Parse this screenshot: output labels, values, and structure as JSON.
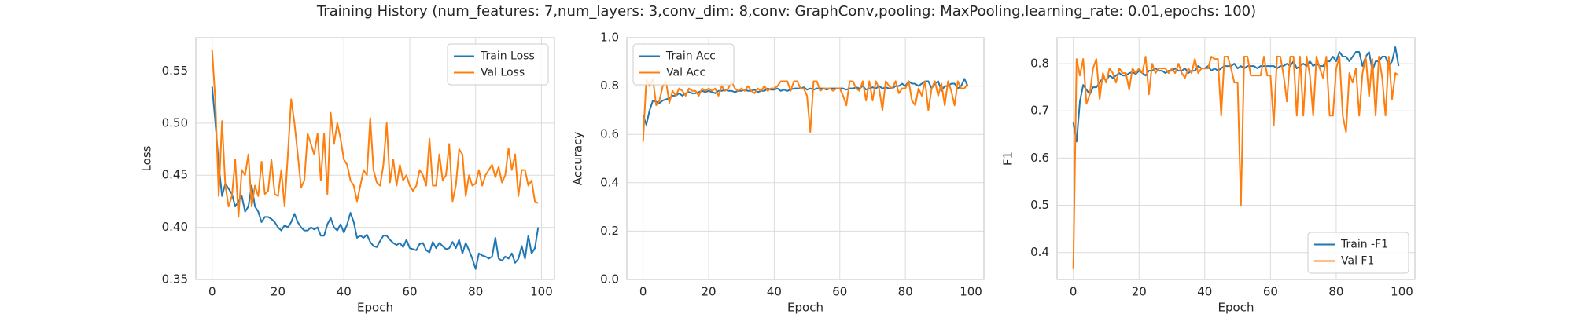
{
  "title": "Training History (num_features: 7,num_layers: 3,conv_dim: 8,conv: GraphConv,pooling: MaxPooling,learning_rate: 0.01,epochs: 100)",
  "chart_data": [
    {
      "type": "line",
      "xlabel": "Epoch",
      "ylabel": "Loss",
      "grid": true,
      "legend": "upper right",
      "x": [
        0,
        1,
        2,
        3,
        4,
        5,
        6,
        7,
        8,
        9,
        10,
        11,
        12,
        13,
        14,
        15,
        16,
        17,
        18,
        19,
        20,
        21,
        22,
        23,
        24,
        25,
        26,
        27,
        28,
        29,
        30,
        31,
        32,
        33,
        34,
        35,
        36,
        37,
        38,
        39,
        40,
        41,
        42,
        43,
        44,
        45,
        46,
        47,
        48,
        49,
        50,
        51,
        52,
        53,
        54,
        55,
        56,
        57,
        58,
        59,
        60,
        61,
        62,
        63,
        64,
        65,
        66,
        67,
        68,
        69,
        70,
        71,
        72,
        73,
        74,
        75,
        76,
        77,
        78,
        79,
        80,
        81,
        82,
        83,
        84,
        85,
        86,
        87,
        88,
        89,
        90,
        91,
        92,
        93,
        94,
        95,
        96,
        97,
        98,
        99
      ],
      "xlim": [
        -4.95,
        103.95
      ],
      "xticks": [
        0,
        20,
        40,
        60,
        80,
        100
      ],
      "ylim": [
        0.35,
        0.582
      ],
      "yticks": [
        0.35,
        {
          "value": 0.4,
          "label": "0.40"
        },
        0.45,
        {
          "value": 0.5,
          "label": "0.50"
        },
        0.55
      ],
      "series": [
        {
          "name": "Train Loss",
          "color": "#1f77b4",
          "values": [
            0.535,
            0.5,
            0.46,
            0.43,
            0.442,
            0.437,
            0.432,
            0.42,
            0.425,
            0.43,
            0.415,
            0.42,
            0.44,
            0.42,
            0.415,
            0.405,
            0.41,
            0.41,
            0.408,
            0.405,
            0.4,
            0.397,
            0.402,
            0.4,
            0.405,
            0.413,
            0.405,
            0.4,
            0.397,
            0.397,
            0.4,
            0.398,
            0.4,
            0.392,
            0.392,
            0.403,
            0.409,
            0.4,
            0.397,
            0.403,
            0.395,
            0.403,
            0.414,
            0.405,
            0.39,
            0.392,
            0.39,
            0.393,
            0.386,
            0.382,
            0.381,
            0.387,
            0.392,
            0.392,
            0.388,
            0.385,
            0.383,
            0.385,
            0.381,
            0.388,
            0.38,
            0.379,
            0.378,
            0.384,
            0.385,
            0.378,
            0.376,
            0.386,
            0.38,
            0.385,
            0.382,
            0.379,
            0.38,
            0.386,
            0.38,
            0.388,
            0.375,
            0.385,
            0.378,
            0.37,
            0.36,
            0.375,
            0.373,
            0.372,
            0.37,
            0.372,
            0.39,
            0.37,
            0.368,
            0.372,
            0.37,
            0.375,
            0.366,
            0.37,
            0.382,
            0.37,
            0.392,
            0.375,
            0.38,
            0.4
          ]
        },
        {
          "name": "Val Loss",
          "color": "#ff7f0e",
          "values": [
            0.57,
            0.52,
            0.43,
            0.502,
            0.44,
            0.42,
            0.43,
            0.465,
            0.41,
            0.455,
            0.45,
            0.47,
            0.42,
            0.44,
            0.43,
            0.463,
            0.432,
            0.435,
            0.465,
            0.432,
            0.43,
            0.455,
            0.42,
            0.47,
            0.523,
            0.5,
            0.47,
            0.438,
            0.445,
            0.49,
            0.48,
            0.47,
            0.49,
            0.445,
            0.49,
            0.432,
            0.51,
            0.48,
            0.5,
            0.485,
            0.465,
            0.46,
            0.445,
            0.44,
            0.425,
            0.44,
            0.455,
            0.45,
            0.505,
            0.455,
            0.443,
            0.44,
            0.46,
            0.5,
            0.443,
            0.465,
            0.44,
            0.46,
            0.445,
            0.45,
            0.44,
            0.435,
            0.44,
            0.455,
            0.45,
            0.44,
            0.485,
            0.44,
            0.44,
            0.47,
            0.445,
            0.45,
            0.48,
            0.425,
            0.44,
            0.475,
            0.47,
            0.43,
            0.45,
            0.44,
            0.442,
            0.455,
            0.44,
            0.45,
            0.455,
            0.46,
            0.448,
            0.458,
            0.443,
            0.45,
            0.476,
            0.455,
            0.47,
            0.43,
            0.455,
            0.455,
            0.44,
            0.445,
            0.425,
            0.423
          ]
        }
      ]
    },
    {
      "type": "line",
      "xlabel": "Epoch",
      "ylabel": "Accuracy",
      "grid": true,
      "legend": "upper left",
      "x": [
        0,
        1,
        2,
        3,
        4,
        5,
        6,
        7,
        8,
        9,
        10,
        11,
        12,
        13,
        14,
        15,
        16,
        17,
        18,
        19,
        20,
        21,
        22,
        23,
        24,
        25,
        26,
        27,
        28,
        29,
        30,
        31,
        32,
        33,
        34,
        35,
        36,
        37,
        38,
        39,
        40,
        41,
        42,
        43,
        44,
        45,
        46,
        47,
        48,
        49,
        50,
        51,
        52,
        53,
        54,
        55,
        56,
        57,
        58,
        59,
        60,
        61,
        62,
        63,
        64,
        65,
        66,
        67,
        68,
        69,
        70,
        71,
        72,
        73,
        74,
        75,
        76,
        77,
        78,
        79,
        80,
        81,
        82,
        83,
        84,
        85,
        86,
        87,
        88,
        89,
        90,
        91,
        92,
        93,
        94,
        95,
        96,
        97,
        98,
        99
      ],
      "xlim": [
        -4.95,
        103.95
      ],
      "xticks": [
        0,
        20,
        40,
        60,
        80,
        100
      ],
      "ylim": [
        0,
        1
      ],
      "yticks": [
        {
          "value": 0,
          "label": "0.0"
        },
        0.2,
        0.4,
        0.6,
        0.8,
        {
          "value": 1,
          "label": "1.0"
        }
      ],
      "series": [
        {
          "name": "Train Acc",
          "color": "#1f77b4",
          "values": [
            0.68,
            0.64,
            0.7,
            0.74,
            0.735,
            0.73,
            0.74,
            0.745,
            0.75,
            0.76,
            0.76,
            0.77,
            0.76,
            0.77,
            0.775,
            0.77,
            0.77,
            0.775,
            0.78,
            0.775,
            0.78,
            0.775,
            0.77,
            0.78,
            0.78,
            0.785,
            0.78,
            0.78,
            0.775,
            0.78,
            0.78,
            0.785,
            0.78,
            0.78,
            0.785,
            0.775,
            0.78,
            0.78,
            0.79,
            0.785,
            0.785,
            0.79,
            0.78,
            0.785,
            0.78,
            0.785,
            0.79,
            0.79,
            0.79,
            0.795,
            0.785,
            0.79,
            0.785,
            0.79,
            0.79,
            0.79,
            0.785,
            0.79,
            0.79,
            0.79,
            0.79,
            0.79,
            0.785,
            0.79,
            0.79,
            0.795,
            0.79,
            0.8,
            0.785,
            0.79,
            0.795,
            0.79,
            0.8,
            0.79,
            0.795,
            0.79,
            0.79,
            0.8,
            0.8,
            0.81,
            0.8,
            0.82,
            0.81,
            0.81,
            0.8,
            0.81,
            0.82,
            0.82,
            0.79,
            0.81,
            0.82,
            0.78,
            0.8,
            0.8,
            0.81,
            0.81,
            0.79,
            0.8,
            0.83,
            0.8
          ]
        },
        {
          "name": "Val Acc",
          "color": "#ff7f0e",
          "values": [
            0.57,
            0.83,
            0.8,
            0.83,
            0.72,
            0.74,
            0.8,
            0.82,
            0.73,
            0.78,
            0.76,
            0.79,
            0.78,
            0.76,
            0.79,
            0.78,
            0.78,
            0.76,
            0.79,
            0.78,
            0.79,
            0.78,
            0.79,
            0.76,
            0.8,
            0.78,
            0.79,
            0.82,
            0.79,
            0.78,
            0.79,
            0.78,
            0.8,
            0.78,
            0.77,
            0.79,
            0.78,
            0.8,
            0.78,
            0.79,
            0.79,
            0.8,
            0.82,
            0.82,
            0.82,
            0.78,
            0.82,
            0.82,
            0.79,
            0.79,
            0.76,
            0.61,
            0.82,
            0.82,
            0.78,
            0.79,
            0.79,
            0.79,
            0.78,
            0.79,
            0.79,
            0.76,
            0.72,
            0.82,
            0.82,
            0.79,
            0.78,
            0.82,
            0.74,
            0.82,
            0.74,
            0.82,
            0.79,
            0.7,
            0.82,
            0.8,
            0.79,
            0.82,
            0.77,
            0.79,
            0.79,
            0.82,
            0.74,
            0.72,
            0.79,
            0.76,
            0.82,
            0.7,
            0.79,
            0.82,
            0.76,
            0.81,
            0.72,
            0.82,
            0.78,
            0.72,
            0.82,
            0.79,
            0.79,
            0.81
          ]
        }
      ]
    },
    {
      "type": "line",
      "xlabel": "Epoch",
      "ylabel": "F1",
      "grid": true,
      "legend": "lower right",
      "x": [
        0,
        1,
        2,
        3,
        4,
        5,
        6,
        7,
        8,
        9,
        10,
        11,
        12,
        13,
        14,
        15,
        16,
        17,
        18,
        19,
        20,
        21,
        22,
        23,
        24,
        25,
        26,
        27,
        28,
        29,
        30,
        31,
        32,
        33,
        34,
        35,
        36,
        37,
        38,
        39,
        40,
        41,
        42,
        43,
        44,
        45,
        46,
        47,
        48,
        49,
        50,
        51,
        52,
        53,
        54,
        55,
        56,
        57,
        58,
        59,
        60,
        61,
        62,
        63,
        64,
        65,
        66,
        67,
        68,
        69,
        70,
        71,
        72,
        73,
        74,
        75,
        76,
        77,
        78,
        79,
        80,
        81,
        82,
        83,
        84,
        85,
        86,
        87,
        88,
        89,
        90,
        91,
        92,
        93,
        94,
        95,
        96,
        97,
        98,
        99
      ],
      "xlim": [
        -4.95,
        103.95
      ],
      "xticks": [
        0,
        20,
        40,
        60,
        80,
        100
      ],
      "ylim": [
        0.343,
        0.855
      ],
      "yticks": [
        0.4,
        0.5,
        0.6,
        0.7,
        0.8
      ],
      "series": [
        {
          "name": "Train -F1",
          "color": "#1f77b4",
          "values": [
            0.675,
            0.635,
            0.72,
            0.755,
            0.745,
            0.735,
            0.75,
            0.75,
            0.76,
            0.77,
            0.765,
            0.775,
            0.77,
            0.775,
            0.78,
            0.775,
            0.775,
            0.78,
            0.782,
            0.778,
            0.785,
            0.78,
            0.775,
            0.785,
            0.785,
            0.79,
            0.785,
            0.785,
            0.78,
            0.785,
            0.785,
            0.79,
            0.785,
            0.785,
            0.79,
            0.78,
            0.785,
            0.785,
            0.795,
            0.79,
            0.79,
            0.795,
            0.785,
            0.79,
            0.785,
            0.79,
            0.795,
            0.795,
            0.795,
            0.8,
            0.79,
            0.795,
            0.79,
            0.795,
            0.795,
            0.795,
            0.79,
            0.795,
            0.795,
            0.795,
            0.795,
            0.795,
            0.79,
            0.795,
            0.795,
            0.8,
            0.795,
            0.805,
            0.79,
            0.795,
            0.8,
            0.795,
            0.805,
            0.795,
            0.8,
            0.795,
            0.795,
            0.805,
            0.805,
            0.815,
            0.805,
            0.825,
            0.815,
            0.815,
            0.805,
            0.815,
            0.825,
            0.825,
            0.795,
            0.815,
            0.825,
            0.785,
            0.805,
            0.805,
            0.815,
            0.815,
            0.795,
            0.805,
            0.835,
            0.795
          ]
        },
        {
          "name": "Val F1",
          "color": "#ff7f0e",
          "values": [
            0.365,
            0.81,
            0.775,
            0.81,
            0.715,
            0.735,
            0.79,
            0.81,
            0.725,
            0.78,
            0.76,
            0.79,
            0.78,
            0.76,
            0.79,
            0.78,
            0.78,
            0.745,
            0.79,
            0.78,
            0.79,
            0.78,
            0.815,
            0.735,
            0.8,
            0.78,
            0.79,
            0.79,
            0.79,
            0.78,
            0.79,
            0.78,
            0.8,
            0.78,
            0.77,
            0.79,
            0.78,
            0.81,
            0.78,
            0.79,
            0.79,
            0.79,
            0.815,
            0.81,
            0.81,
            0.69,
            0.815,
            0.815,
            0.79,
            0.76,
            0.76,
            0.5,
            0.815,
            0.815,
            0.775,
            0.775,
            0.775,
            0.775,
            0.815,
            0.775,
            0.775,
            0.67,
            0.815,
            0.815,
            0.775,
            0.72,
            0.815,
            0.815,
            0.69,
            0.815,
            0.69,
            0.815,
            0.775,
            0.69,
            0.815,
            0.79,
            0.77,
            0.815,
            0.69,
            0.69,
            0.79,
            0.815,
            0.69,
            0.655,
            0.78,
            0.76,
            0.79,
            0.69,
            0.78,
            0.815,
            0.73,
            0.81,
            0.69,
            0.815,
            0.77,
            0.69,
            0.815,
            0.725,
            0.78,
            0.775
          ]
        }
      ]
    }
  ]
}
